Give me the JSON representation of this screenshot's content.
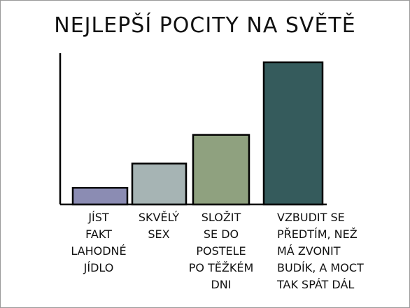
{
  "chart_data": {
    "type": "bar",
    "title": "NEJLEPŠÍ POCITY NA SVĚTĚ",
    "categories": [
      "JÍST\nFAKT\nLAHODNÉ\nJÍDLO",
      "SKVĚLÝ\nSEX",
      "SLOŽIT\nSE DO\nPOSTELE\nPO TĚŽKÉM\nDNI",
      "VZBUDIT SE\nPŘEDTÍM, NEŽ\nMÁ ZVONIT\nBUDÍK, A MOCT\nTAK SPÁT DÁL"
    ],
    "values": [
      11,
      27,
      46,
      94
    ],
    "colors": [
      "#8b8cb3",
      "#a6b4b4",
      "#8fa17f",
      "#355b5c"
    ],
    "ylim": [
      0,
      100
    ]
  }
}
